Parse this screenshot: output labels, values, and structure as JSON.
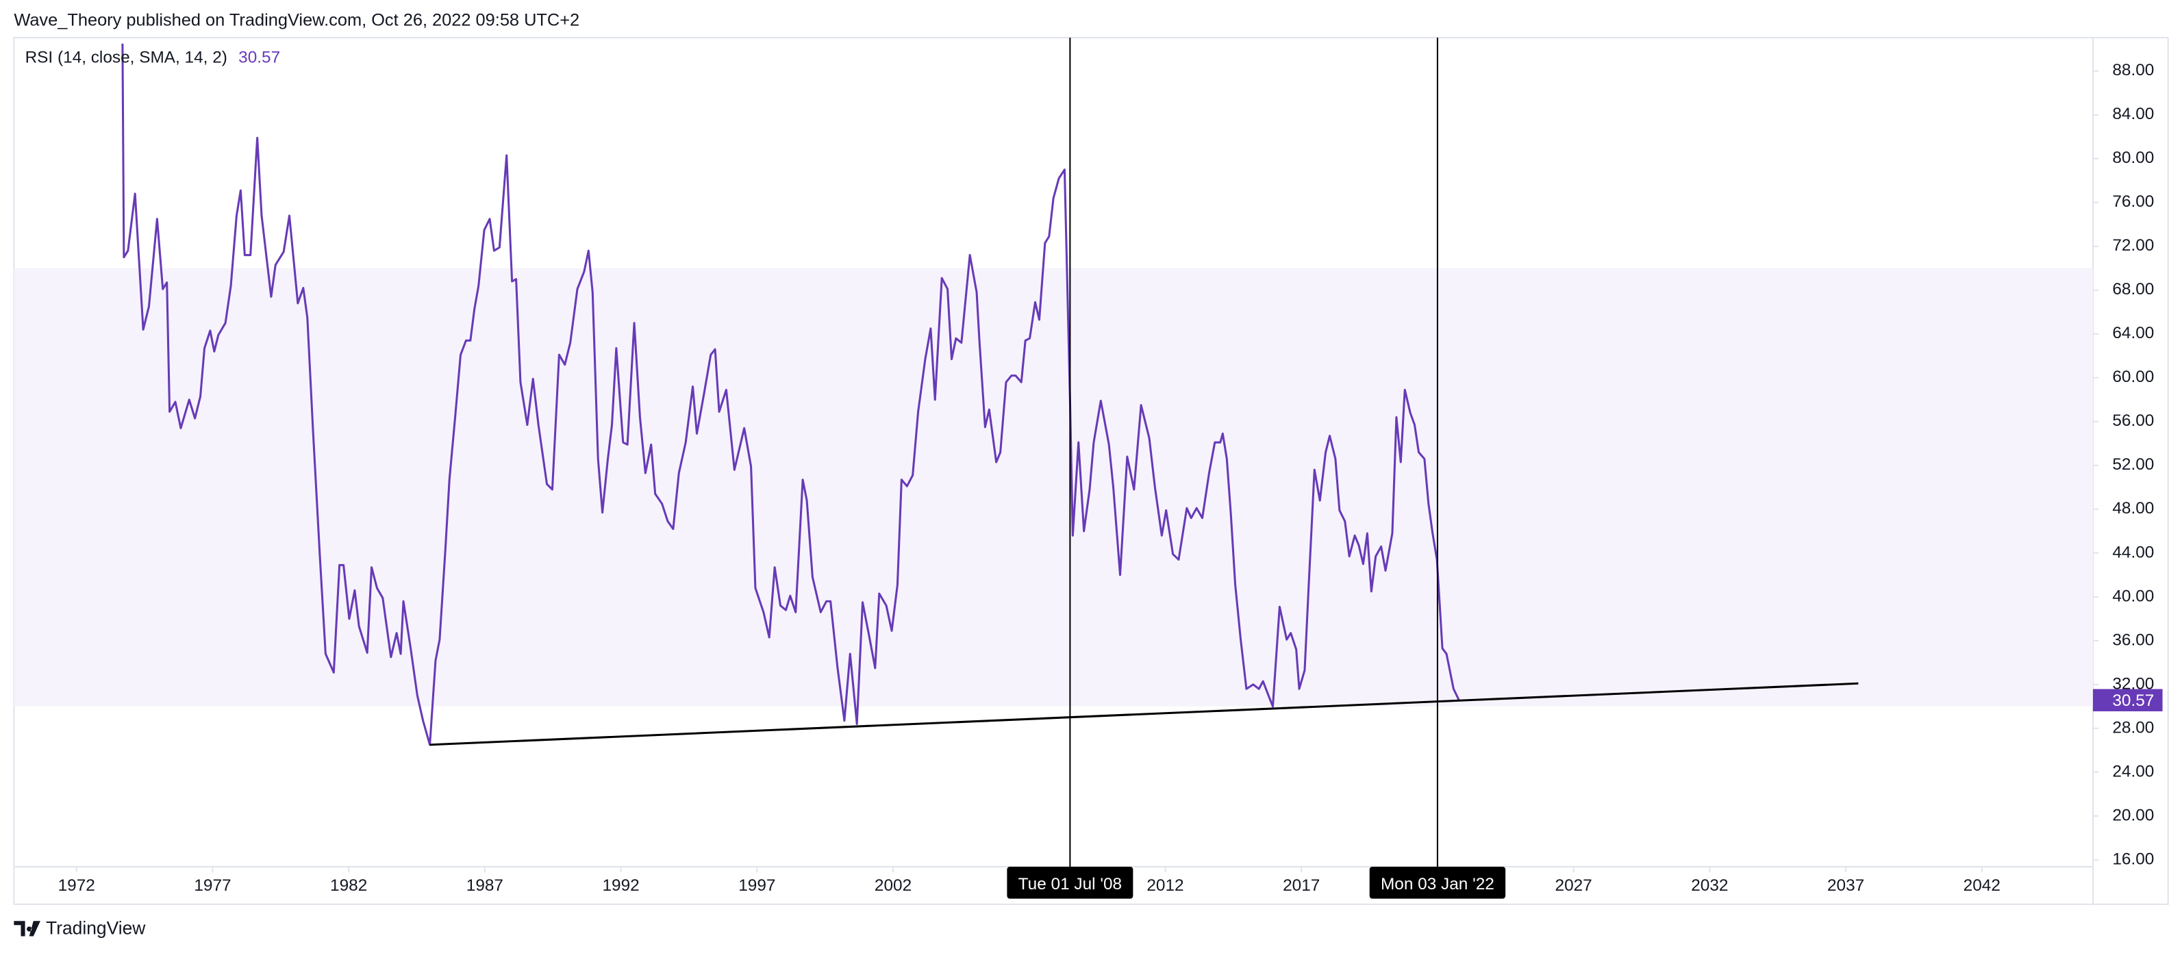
{
  "header": "Wave_Theory published on TradingView.com, Oct 26, 2022 09:58 UTC+2",
  "footer": "TradingView",
  "chart_data": {
    "type": "line",
    "series": [
      {
        "name": "RSI (14, close, SMA, 14, 2)",
        "color": "#673ab7",
        "values": [
          90.5,
          71.0,
          71.6,
          76.8,
          64.4,
          66.5,
          74.5,
          68.1,
          68.7,
          56.9,
          57.8,
          55.4,
          58.0,
          56.3,
          58.3,
          62.7,
          64.3,
          62.4,
          63.9,
          65.0,
          68.4,
          74.8,
          77.1,
          71.2,
          71.2,
          81.9,
          74.8,
          67.4,
          70.3,
          71.5,
          74.8,
          66.8,
          68.2,
          65.5,
          55.1,
          43.7,
          34.8,
          33.1,
          42.9,
          42.9,
          38.0,
          40.6,
          37.3,
          34.9,
          42.7,
          40.8,
          39.9,
          34.5,
          36.7,
          34.8,
          39.6,
          35.4,
          31.0,
          28.7,
          26.5,
          34.2,
          36.1,
          44.3,
          50.7,
          56.4,
          62.1,
          63.4,
          63.4,
          66.3,
          68.4,
          73.5,
          74.5,
          71.6,
          71.9,
          80.3,
          68.8,
          69.0,
          59.6,
          55.7,
          59.9,
          55.7,
          50.3,
          49.8,
          62.1,
          61.2,
          63.2,
          68.1,
          69.7,
          71.6,
          67.8,
          52.6,
          47.7,
          52.6,
          55.7,
          62.7,
          54.1,
          53.9,
          65.0,
          56.4,
          51.3,
          53.9,
          49.4,
          48.5,
          46.9,
          46.2,
          51.3,
          54.1,
          59.2,
          54.9,
          58.5,
          62.1,
          62.6,
          56.9,
          58.9,
          51.6,
          55.4,
          51.9,
          40.8,
          38.6,
          36.3,
          42.7,
          39.2,
          38.8,
          40.1,
          38.6,
          50.7,
          48.8,
          41.8,
          38.6,
          39.6,
          39.6,
          33.5,
          28.7,
          34.8,
          28.4,
          39.5,
          36.3,
          33.5,
          40.3,
          39.2,
          36.9,
          41.1,
          50.7,
          50.1,
          51.1,
          56.9,
          61.7,
          64.5,
          58.0,
          69.1,
          68.1,
          61.7,
          63.6,
          63.2,
          71.2,
          67.8,
          63.4,
          55.5,
          57.1,
          52.3,
          53.2,
          59.6,
          60.2,
          60.2,
          59.6,
          63.4,
          63.6,
          66.9,
          65.3,
          72.3,
          72.9,
          76.4,
          78.2,
          79.0,
          58.0,
          45.6,
          54.1,
          46.0,
          49.8,
          54.1,
          57.9,
          53.9,
          50.0,
          42.0,
          52.8,
          49.8,
          57.5,
          54.5,
          50.0,
          45.6,
          47.9,
          43.9,
          43.4,
          48.1,
          47.2,
          48.1,
          47.2,
          51.3,
          54.1,
          54.1,
          54.9,
          52.6,
          47.5,
          41.1,
          36.1,
          31.6,
          32.0,
          31.6,
          32.3,
          31.0,
          30.0,
          39.1,
          36.1,
          36.7,
          35.2,
          31.6,
          33.3,
          41.1,
          51.6,
          48.8,
          53.2,
          54.7,
          52.6,
          47.9,
          46.9,
          43.7,
          45.6,
          44.7,
          43.0,
          45.8,
          40.5,
          43.7,
          44.6,
          42.4,
          45.8,
          56.4,
          52.3,
          58.9,
          56.8,
          55.7,
          53.2,
          52.6,
          48.5,
          45.8,
          43.4,
          35.3,
          34.8,
          31.6,
          30.57
        ]
      }
    ],
    "x": [
      1973.69,
      1973.74,
      1973.89,
      1974.15,
      1974.45,
      1974.66,
      1974.96,
      1975.17,
      1975.32,
      1975.42,
      1975.63,
      1975.83,
      1976.14,
      1976.35,
      1976.55,
      1976.7,
      1976.91,
      1977.06,
      1977.21,
      1977.47,
      1977.67,
      1977.88,
      1978.03,
      1978.18,
      1978.39,
      1978.64,
      1978.8,
      1979.15,
      1979.31,
      1979.61,
      1979.82,
      1980.13,
      1980.33,
      1980.48,
      1980.69,
      1980.94,
      1981.15,
      1981.45,
      1981.66,
      1981.81,
      1982.02,
      1982.22,
      1982.38,
      1982.68,
      1982.84,
      1983.04,
      1983.25,
      1983.55,
      1983.76,
      1983.91,
      1984.01,
      1984.27,
      1984.52,
      1984.73,
      1984.98,
      1985.19,
      1985.34,
      1985.55,
      1985.7,
      1985.91,
      1986.11,
      1986.31,
      1986.47,
      1986.62,
      1986.77,
      1986.98,
      1987.18,
      1987.34,
      1987.54,
      1987.8,
      1988.0,
      1988.15,
      1988.31,
      1988.56,
      1988.77,
      1988.97,
      1989.28,
      1989.48,
      1989.73,
      1989.94,
      1990.14,
      1990.4,
      1990.65,
      1990.81,
      1990.96,
      1991.16,
      1991.32,
      1991.52,
      1991.67,
      1991.83,
      1992.08,
      1992.24,
      1992.49,
      1992.7,
      1992.9,
      1993.11,
      1993.26,
      1993.51,
      1993.72,
      1993.92,
      1994.13,
      1994.38,
      1994.64,
      1994.79,
      1995.05,
      1995.3,
      1995.46,
      1995.61,
      1995.87,
      1996.17,
      1996.53,
      1996.78,
      1996.94,
      1997.24,
      1997.45,
      1997.65,
      1997.86,
      1998.06,
      1998.22,
      1998.42,
      1998.68,
      1998.83,
      1999.04,
      1999.34,
      1999.55,
      1999.7,
      1999.96,
      2000.21,
      2000.42,
      2000.67,
      2000.88,
      2001.13,
      2001.34,
      2001.49,
      2001.75,
      2001.95,
      2002.16,
      2002.31,
      2002.51,
      2002.72,
      2002.92,
      2003.18,
      2003.38,
      2003.54,
      2003.79,
      2004.0,
      2004.15,
      2004.31,
      2004.51,
      2004.82,
      2005.07,
      2005.17,
      2005.38,
      2005.53,
      2005.79,
      2005.94,
      2006.15,
      2006.35,
      2006.5,
      2006.71,
      2006.86,
      2007.02,
      2007.22,
      2007.37,
      2007.58,
      2007.73,
      2007.89,
      2008.09,
      2008.3,
      2008.5,
      2008.6,
      2008.81,
      2009.01,
      2009.22,
      2009.37,
      2009.63,
      2009.93,
      2010.09,
      2010.34,
      2010.6,
      2010.85,
      2011.11,
      2011.41,
      2011.62,
      2011.87,
      2012.03,
      2012.28,
      2012.49,
      2012.79,
      2012.95,
      2013.15,
      2013.36,
      2013.61,
      2013.82,
      2014.02,
      2014.11,
      2014.26,
      2014.41,
      2014.57,
      2014.77,
      2014.98,
      2015.23,
      2015.44,
      2015.59,
      2015.79,
      2015.95,
      2016.2,
      2016.46,
      2016.61,
      2016.81,
      2016.92,
      2017.12,
      2017.27,
      2017.48,
      2017.68,
      2017.89,
      2018.04,
      2018.25,
      2018.4,
      2018.6,
      2018.76,
      2018.96,
      2019.11,
      2019.27,
      2019.42,
      2019.57,
      2019.73,
      2019.93,
      2020.09,
      2020.34,
      2020.49,
      2020.65,
      2020.8,
      2021.0,
      2021.16,
      2021.31,
      2021.52,
      2021.67,
      2021.82,
      2021.98,
      2022.18,
      2022.33,
      2022.59,
      2022.79
    ],
    "last_value": 30.57,
    "band": [
      30,
      70
    ],
    "band_color": "#f6f3fc",
    "trendline": {
      "x": [
        1984.98,
        2037.46
      ],
      "values": [
        26.5,
        32.1
      ],
      "color": "#000000"
    },
    "markers": [
      {
        "x": 2008.5,
        "label": "Tue 01 Jul '08"
      },
      {
        "x": 2022.0,
        "label": "Mon 03 Jan '22"
      }
    ],
    "xlim": [
      1969.7,
      2046.08
    ],
    "ylim": [
      15.37,
      91.05
    ],
    "xticks": [
      1972,
      1977,
      1982,
      1987,
      1992,
      1997,
      2002,
      2012,
      2017,
      2027,
      2032,
      2037,
      2042
    ],
    "yticks": [
      {
        "value": 16,
        "label": "16.00"
      },
      {
        "value": 20,
        "label": "20.00"
      },
      {
        "value": 24,
        "label": "24.00"
      },
      {
        "value": 28,
        "label": "28.00"
      },
      {
        "value": 32,
        "label": "32.00"
      },
      {
        "value": 36,
        "label": "36.00"
      },
      {
        "value": 40,
        "label": "40.00"
      },
      {
        "value": 44,
        "label": "44.00"
      },
      {
        "value": 48,
        "label": "48.00"
      },
      {
        "value": 52,
        "label": "52.00"
      },
      {
        "value": 56,
        "label": "56.00"
      },
      {
        "value": 60,
        "label": "60.00"
      },
      {
        "value": 64,
        "label": "64.00"
      },
      {
        "value": 68,
        "label": "68.00"
      },
      {
        "value": 72,
        "label": "72.00"
      },
      {
        "value": 76,
        "label": "76.00"
      },
      {
        "value": 80,
        "label": "80.00"
      },
      {
        "value": 84,
        "label": "84.00"
      },
      {
        "value": 88,
        "label": "88.00"
      }
    ]
  }
}
